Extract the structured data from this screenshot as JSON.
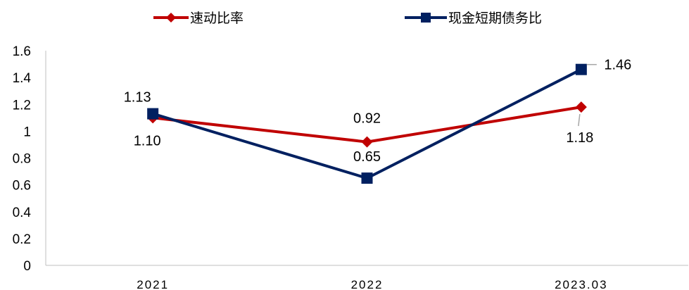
{
  "chart_data": {
    "type": "line",
    "categories": [
      "2021",
      "2022",
      "2023.03"
    ],
    "series": [
      {
        "name": "速动比率",
        "values": [
          1.1,
          0.92,
          1.18
        ],
        "labels": [
          "1.10",
          "0.92",
          "1.18"
        ],
        "color": "#C00000",
        "marker": "diamond"
      },
      {
        "name": "现金短期债务比",
        "values": [
          1.13,
          0.65,
          1.46
        ],
        "labels": [
          "1.13",
          "0.65",
          "1.46"
        ],
        "color": "#002060",
        "marker": "square"
      }
    ],
    "yticks": [
      "0",
      "0.2",
      "0.4",
      "0.6",
      "0.8",
      "1",
      "1.2",
      "1.4",
      "1.6"
    ],
    "ylim": [
      0,
      1.6
    ],
    "grid": false,
    "legend_position": "top"
  }
}
